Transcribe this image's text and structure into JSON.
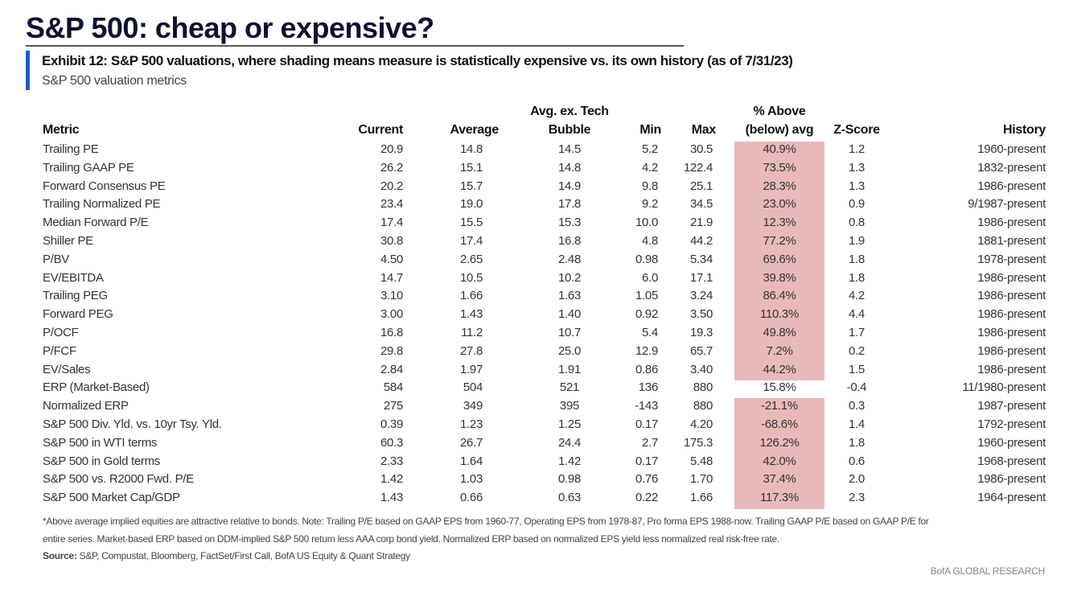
{
  "header": {
    "title": "S&P 500: cheap or expensive?",
    "exhibit": "Exhibit 12: S&P 500 valuations, where shading means measure is statistically expensive vs. its own history (as of 7/31/23)",
    "subtitle": "S&P 500 valuation metrics"
  },
  "colors": {
    "accent": "#1a5ed8",
    "shade": "#e8b9b9",
    "title": "#0c1230"
  },
  "table": {
    "columns": {
      "metric": "Metric",
      "current": "Current",
      "average": "Average",
      "avg_ex_tech_1": "Avg. ex. Tech",
      "avg_ex_tech_2": "Bubble",
      "min": "Min",
      "max": "Max",
      "pct_1": "% Above",
      "pct_2": "(below) avg",
      "zscore": "Z-Score",
      "history": "History"
    },
    "rows": [
      {
        "metric": "Trailing PE",
        "current": "20.9",
        "average": "14.8",
        "avgex": "14.5",
        "min": "5.2",
        "max": "30.5",
        "pct": "40.9%",
        "z": "1.2",
        "history": "1960-present",
        "shaded": true
      },
      {
        "metric": "Trailing GAAP PE",
        "current": "26.2",
        "average": "15.1",
        "avgex": "14.8",
        "min": "4.2",
        "max": "122.4",
        "pct": "73.5%",
        "z": "1.3",
        "history": "1832-present",
        "shaded": true
      },
      {
        "metric": "Forward Consensus PE",
        "current": "20.2",
        "average": "15.7",
        "avgex": "14.9",
        "min": "9.8",
        "max": "25.1",
        "pct": "28.3%",
        "z": "1.3",
        "history": "1986-present",
        "shaded": true
      },
      {
        "metric": "Trailing Normalized PE",
        "current": "23.4",
        "average": "19.0",
        "avgex": "17.8",
        "min": "9.2",
        "max": "34.5",
        "pct": "23.0%",
        "z": "0.9",
        "history": "9/1987-present",
        "shaded": true
      },
      {
        "metric": "Median Forward P/E",
        "current": "17.4",
        "average": "15.5",
        "avgex": "15.3",
        "min": "10.0",
        "max": "21.9",
        "pct": "12.3%",
        "z": "0.8",
        "history": "1986-present",
        "shaded": true
      },
      {
        "metric": "Shiller PE",
        "current": "30.8",
        "average": "17.4",
        "avgex": "16.8",
        "min": "4.8",
        "max": "44.2",
        "pct": "77.2%",
        "z": "1.9",
        "history": "1881-present",
        "shaded": true
      },
      {
        "metric": "P/BV",
        "current": "4.50",
        "average": "2.65",
        "avgex": "2.48",
        "min": "0.98",
        "max": "5.34",
        "pct": "69.6%",
        "z": "1.8",
        "history": "1978-present",
        "shaded": true
      },
      {
        "metric": "EV/EBITDA",
        "current": "14.7",
        "average": "10.5",
        "avgex": "10.2",
        "min": "6.0",
        "max": "17.1",
        "pct": "39.8%",
        "z": "1.8",
        "history": "1986-present",
        "shaded": true
      },
      {
        "metric": "Trailing PEG",
        "current": "3.10",
        "average": "1.66",
        "avgex": "1.63",
        "min": "1.05",
        "max": "3.24",
        "pct": "86.4%",
        "z": "4.2",
        "history": "1986-present",
        "shaded": true
      },
      {
        "metric": "Forward PEG",
        "current": "3.00",
        "average": "1.43",
        "avgex": "1.40",
        "min": "0.92",
        "max": "3.50",
        "pct": "110.3%",
        "z": "4.4",
        "history": "1986-present",
        "shaded": true
      },
      {
        "metric": "P/OCF",
        "current": "16.8",
        "average": "11.2",
        "avgex": "10.7",
        "min": "5.4",
        "max": "19.3",
        "pct": "49.8%",
        "z": "1.7",
        "history": "1986-present",
        "shaded": true
      },
      {
        "metric": "P/FCF",
        "current": "29.8",
        "average": "27.8",
        "avgex": "25.0",
        "min": "12.9",
        "max": "65.7",
        "pct": "7.2%",
        "z": "0.2",
        "history": "1986-present",
        "shaded": true
      },
      {
        "metric": "EV/Sales",
        "current": "2.84",
        "average": "1.97",
        "avgex": "1.91",
        "min": "0.86",
        "max": "3.40",
        "pct": "44.2%",
        "z": "1.5",
        "history": "1986-present",
        "shaded": true
      },
      {
        "metric": "ERP (Market-Based)",
        "current": "584",
        "average": "504",
        "avgex": "521",
        "min": "136",
        "max": "880",
        "pct": "15.8%",
        "z": "-0.4",
        "history": "11/1980-present",
        "shaded": false
      },
      {
        "metric": "Normalized ERP",
        "current": "275",
        "average": "349",
        "avgex": "395",
        "min": "-143",
        "max": "880",
        "pct": "-21.1%",
        "z": "0.3",
        "history": "1987-present",
        "shaded": true
      },
      {
        "metric": "S&P 500 Div. Yld. vs. 10yr Tsy. Yld.",
        "current": "0.39",
        "average": "1.23",
        "avgex": "1.25",
        "min": "0.17",
        "max": "4.20",
        "pct": "-68.6%",
        "z": "1.4",
        "history": "1792-present",
        "shaded": true
      },
      {
        "metric": "S&P 500 in WTI terms",
        "current": "60.3",
        "average": "26.7",
        "avgex": "24.4",
        "min": "2.7",
        "max": "175.3",
        "pct": "126.2%",
        "z": "1.8",
        "history": "1960-present",
        "shaded": true
      },
      {
        "metric": "S&P 500 in Gold terms",
        "current": "2.33",
        "average": "1.64",
        "avgex": "1.42",
        "min": "0.17",
        "max": "5.48",
        "pct": "42.0%",
        "z": "0.6",
        "history": "1968-present",
        "shaded": true
      },
      {
        "metric": "S&P 500 vs. R2000 Fwd. P/E",
        "current": "1.42",
        "average": "1.03",
        "avgex": "0.98",
        "min": "0.76",
        "max": "1.70",
        "pct": "37.4%",
        "z": "2.0",
        "history": "1986-present",
        "shaded": true
      },
      {
        "metric": "S&P 500 Market Cap/GDP",
        "current": "1.43",
        "average": "0.66",
        "avgex": "0.63",
        "min": "0.22",
        "max": "1.66",
        "pct": "117.3%",
        "z": "2.3",
        "history": "1964-present",
        "shaded": true
      }
    ]
  },
  "footer": {
    "note_1": "*Above average implied equities are attractive relative to bonds.  Note: Trailing P/E based on GAAP EPS from 1960-77, Operating EPS from 1978-87, Pro forma EPS 1988-now.  Trailing GAAP P/E based on GAAP P/E for",
    "note_2": "entire series. Market-based ERP based on DDM-implied S&P 500 return less AAA corp bond yield. Normalized ERP based on normalized EPS yield less normalized real risk-free rate.",
    "source_label": "Source:",
    "source_text": " S&P, Compustat, Bloomberg, FactSet/First Call, BofA US Equity & Quant Strategy",
    "brand": "BofA GLOBAL RESEARCH"
  }
}
